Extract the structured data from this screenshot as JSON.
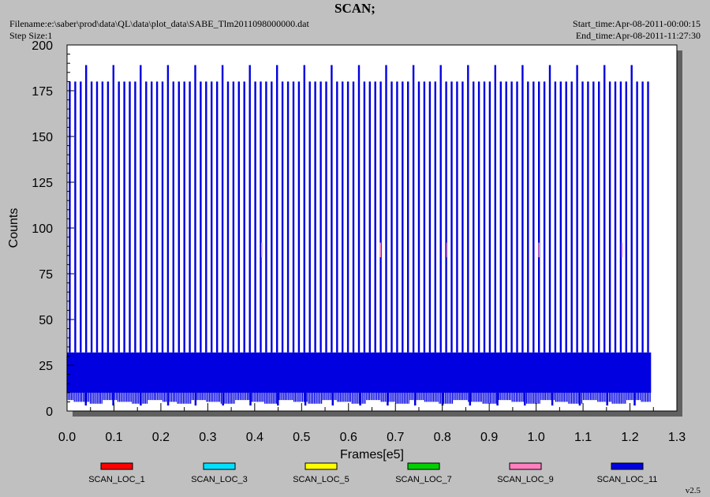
{
  "title": "SCAN;",
  "header": {
    "filename": "Filename:e:\\saber\\prod\\data\\QL\\data\\plot_data\\SABE_Tlm2011098000000.dat",
    "step_size": "Step Size:1",
    "start_time": "Start_time:Apr-08-2011-00:00:15",
    "end_time": "End_time:Apr-08-2011-11:27:30"
  },
  "version": "v2.5",
  "chart_data": {
    "type": "line",
    "title": "SCAN;",
    "xlabel": "Frames[e5]",
    "ylabel": "Counts",
    "xlim": [
      0.0,
      1.3
    ],
    "ylim": [
      0,
      200
    ],
    "x_ticks": [
      "0.0",
      "0.1",
      "0.2",
      "0.3",
      "0.4",
      "0.5",
      "0.6",
      "0.7",
      "0.8",
      "0.9",
      "1.0",
      "1.1",
      "1.2",
      "1.3"
    ],
    "y_ticks": [
      "0",
      "25",
      "50",
      "75",
      "100",
      "125",
      "150",
      "175",
      "200"
    ],
    "x_range_of_data": [
      0.0,
      1.245
    ],
    "legend_placement": "bottom",
    "series": [
      {
        "name": "SCAN_LOC_1",
        "color": "#ff0000"
      },
      {
        "name": "SCAN_LOC_3",
        "color": "#00e0ff"
      },
      {
        "name": "SCAN_LOC_5",
        "color": "#ffff00"
      },
      {
        "name": "SCAN_LOC_7",
        "color": "#00d000"
      },
      {
        "name": "SCAN_LOC_9",
        "color": "#ff80c0"
      },
      {
        "name": "SCAN_LOC_11",
        "color": "#0000e0",
        "low_band": [
          10,
          32
        ],
        "spike_top": 180,
        "spike_top_high": 189,
        "dip_bottom": 3
      }
    ],
    "pink_marks_x": [
      0.415,
      0.668,
      0.81,
      1.006,
      1.183
    ],
    "grid": false
  }
}
